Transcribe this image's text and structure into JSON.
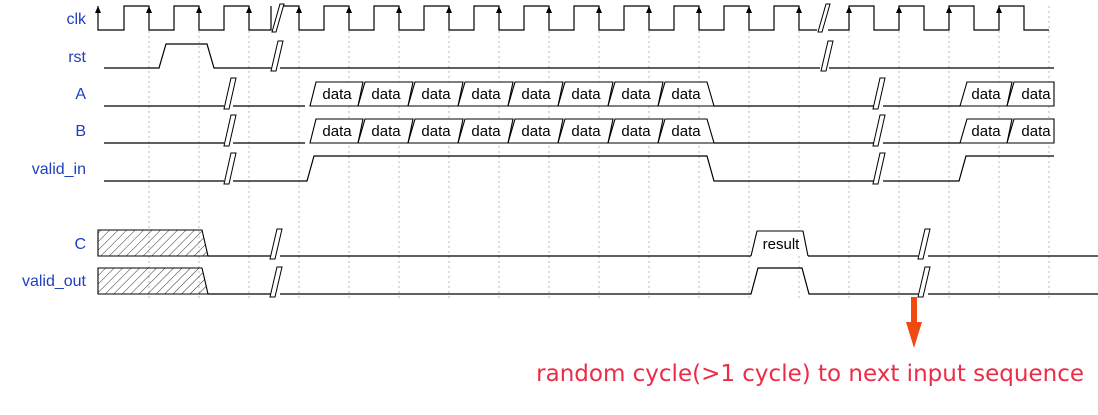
{
  "signals": {
    "clk": "clk",
    "rst": "rst",
    "a": "A",
    "b": "B",
    "valid_in": "valid_in",
    "c": "C",
    "valid_out": "valid_out"
  },
  "bus_values": {
    "data": "data",
    "result": "result"
  },
  "annotation": {
    "text": "random cycle(>1 cycle) to next input sequence",
    "color": "#ee2b47",
    "arrow_color": "#f04a10"
  },
  "colors": {
    "signal_label": "#1f3fbf",
    "waveform": "#000000",
    "grid": "#b8b8b8"
  }
}
